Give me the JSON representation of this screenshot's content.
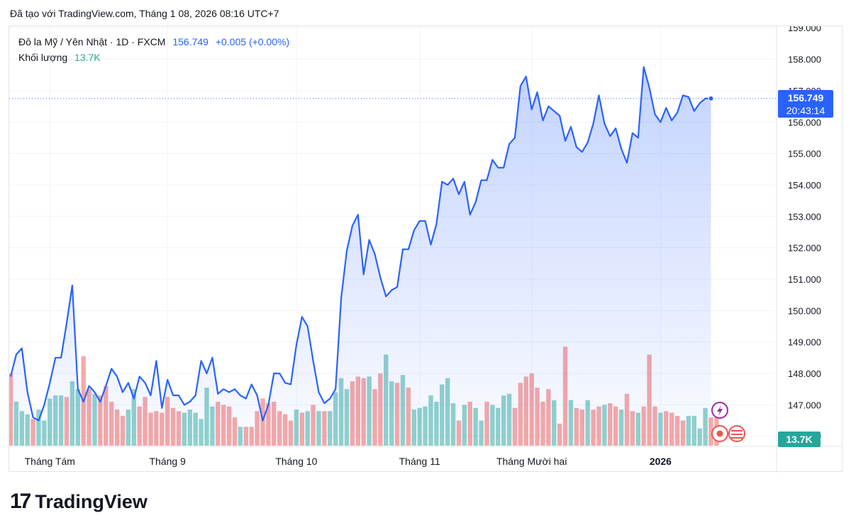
{
  "header": {
    "text": "Đã tạo với TradingView.com, Tháng 1 08, 2026 08:16 UTC+7"
  },
  "legend": {
    "symbol": "Đô la Mỹ / Yên Nhật · 1D · FXCM",
    "last": "156.749",
    "change": "+0.005 (+0.00%)",
    "volume_label": "Khối lượng",
    "volume_value": "13.7K"
  },
  "logo": {
    "mark": "17",
    "text": "TradingView"
  },
  "colors": {
    "line": "#2962ff",
    "up_volume": "#26a69a",
    "down_volume": "#ef5350",
    "badge_blue": "#2962ff",
    "badge_green": "#26a69a"
  },
  "chart_data": {
    "type": "area",
    "ylim": [
      145.7,
      159.05
    ],
    "y_ticks": [
      "146.000",
      "147.000",
      "148.000",
      "149.000",
      "150.000",
      "151.000",
      "152.000",
      "153.000",
      "154.000",
      "155.000",
      "156.000",
      "157.000",
      "158.000",
      "159.000"
    ],
    "x_ticks": [
      {
        "label": "Tháng Tám",
        "index": 7,
        "bold": false
      },
      {
        "label": "Tháng 9",
        "index": 28,
        "bold": false
      },
      {
        "label": "Tháng 10",
        "index": 51,
        "bold": false
      },
      {
        "label": "Tháng 11",
        "index": 73,
        "bold": false
      },
      {
        "label": "Tháng Mười hai",
        "index": 93,
        "bold": false
      },
      {
        "label": "2026",
        "index": 116,
        "bold": true
      }
    ],
    "last_price_label": "156.749",
    "countdown_label": "20:43:14",
    "volume_badge_label": "13.7K",
    "price": [
      147.9,
      148.6,
      148.8,
      147.4,
      146.6,
      146.5,
      147.0,
      147.7,
      148.5,
      148.5,
      149.6,
      150.8,
      147.5,
      147.1,
      147.6,
      147.4,
      147.1,
      147.6,
      148.15,
      147.9,
      147.4,
      147.7,
      147.2,
      147.9,
      147.7,
      147.3,
      148.4,
      146.9,
      147.8,
      147.3,
      147.3,
      147.0,
      147.1,
      147.3,
      148.4,
      148.0,
      148.5,
      147.35,
      147.5,
      147.4,
      147.5,
      147.3,
      147.2,
      147.65,
      147.3,
      146.5,
      147.0,
      148.0,
      148.0,
      147.7,
      147.65,
      148.9,
      149.8,
      149.5,
      148.4,
      147.4,
      147.05,
      147.2,
      147.5,
      150.4,
      151.9,
      152.7,
      153.05,
      151.15,
      152.25,
      151.8,
      151.05,
      150.45,
      150.65,
      150.75,
      151.95,
      151.95,
      152.55,
      152.85,
      152.85,
      152.1,
      152.75,
      154.1,
      154.0,
      154.2,
      153.7,
      154.1,
      153.05,
      153.45,
      154.15,
      154.15,
      154.8,
      154.55,
      154.55,
      155.3,
      155.5,
      157.15,
      157.45,
      156.4,
      156.95,
      156.05,
      156.5,
      156.35,
      156.2,
      155.4,
      155.85,
      155.2,
      155.05,
      155.35,
      155.95,
      156.85,
      155.95,
      155.55,
      155.8,
      155.15,
      154.7,
      155.65,
      155.5,
      157.75,
      157.1,
      156.25,
      156.0,
      156.45,
      156.05,
      156.3,
      156.85,
      156.8,
      156.35,
      156.6,
      156.75,
      156.749
    ],
    "volume": [
      148.0,
      147.1,
      146.8,
      146.7,
      146.55,
      146.85,
      146.5,
      147.2,
      147.3,
      147.3,
      147.25,
      147.75,
      147.5,
      148.55,
      147.5,
      147.35,
      147.3,
      147.6,
      147.1,
      146.85,
      146.65,
      146.85,
      147.5,
      146.95,
      147.25,
      146.75,
      146.8,
      146.75,
      147.25,
      146.9,
      146.8,
      146.75,
      146.85,
      146.75,
      146.55,
      147.55,
      146.95,
      147.1,
      147.0,
      146.95,
      146.6,
      146.3,
      146.3,
      146.3,
      146.8,
      147.2,
      147.05,
      147.1,
      146.8,
      146.7,
      146.5,
      146.85,
      146.75,
      146.8,
      147.0,
      146.8,
      146.8,
      146.8,
      147.4,
      147.85,
      147.5,
      147.75,
      147.9,
      147.85,
      147.9,
      147.5,
      148.0,
      148.6,
      147.75,
      147.7,
      147.95,
      147.55,
      146.85,
      146.9,
      146.95,
      147.3,
      147.1,
      147.65,
      147.85,
      147.05,
      146.5,
      147.0,
      147.1,
      146.9,
      146.5,
      147.1,
      147.0,
      146.9,
      147.3,
      147.35,
      146.9,
      147.7,
      147.9,
      148.0,
      147.55,
      147.1,
      147.5,
      147.15,
      146.4,
      148.85,
      147.15,
      146.9,
      146.85,
      147.15,
      146.85,
      146.95,
      147.0,
      147.05,
      146.95,
      146.85,
      147.35,
      146.8,
      146.75,
      146.95,
      148.6,
      146.95,
      146.75,
      146.8,
      146.75,
      146.65,
      146.5,
      146.65,
      146.65,
      146.25,
      146.9,
      146.6,
      146.6
    ],
    "volume_up": [
      false,
      true,
      true,
      true,
      false,
      true,
      true,
      true,
      true,
      true,
      false,
      true,
      true,
      false,
      false,
      true,
      false,
      false,
      false,
      false,
      false,
      true,
      true,
      false,
      false,
      false,
      false,
      false,
      false,
      false,
      false,
      true,
      true,
      true,
      true,
      true,
      true,
      false,
      false,
      false,
      false,
      true,
      false,
      false,
      false,
      false,
      false,
      false,
      false,
      false,
      false,
      true,
      false,
      true,
      false,
      true,
      false,
      true,
      true,
      true,
      true,
      false,
      false,
      false,
      true,
      false,
      false,
      true,
      true,
      false,
      true,
      false,
      true,
      true,
      true,
      true,
      true,
      true,
      true,
      true,
      false,
      true,
      false,
      true,
      true,
      false,
      true,
      true,
      true,
      true,
      false,
      false,
      false,
      false,
      false,
      false,
      false,
      true,
      false,
      false,
      true,
      false,
      false,
      true,
      false,
      false,
      true,
      false,
      false,
      true,
      false,
      false,
      true,
      false,
      false,
      false,
      true,
      false,
      false,
      false,
      false,
      true,
      true,
      true,
      true,
      false,
      false,
      true
    ]
  }
}
